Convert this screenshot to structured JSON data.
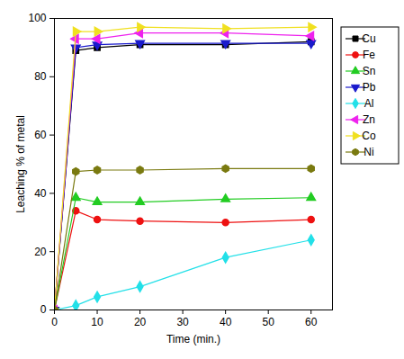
{
  "chart_data": {
    "type": "line",
    "x_label": "Time (min.)",
    "y_label": "Leaching % of metal",
    "x": [
      0,
      5,
      10,
      20,
      40,
      60
    ],
    "xlim": [
      0,
      65
    ],
    "xticks": [
      0,
      10,
      20,
      30,
      40,
      50,
      60
    ],
    "ylim": [
      0,
      100
    ],
    "yticks": [
      0,
      20,
      40,
      60,
      80,
      100
    ],
    "legend": "right",
    "series": [
      {
        "name": "Cu",
        "color": "#000000",
        "marker": "square",
        "values": [
          0,
          89,
          90,
          91,
          91,
          92
        ]
      },
      {
        "name": "Fe",
        "color": "#ee1111",
        "marker": "circle",
        "values": [
          0,
          34,
          31,
          30.5,
          30,
          31
        ]
      },
      {
        "name": "Sn",
        "color": "#22cc22",
        "marker": "triangle-up",
        "values": [
          0,
          38.5,
          37,
          37,
          38,
          38.5
        ]
      },
      {
        "name": "Pb",
        "color": "#1a1acc",
        "marker": "triangle-down",
        "values": [
          0,
          90,
          91,
          91.5,
          91.5,
          91.5
        ]
      },
      {
        "name": "Al",
        "color": "#22e0e8",
        "marker": "diamond",
        "values": [
          0,
          1.5,
          4.5,
          8,
          18,
          24
        ]
      },
      {
        "name": "Zn",
        "color": "#ee22ee",
        "marker": "triangle-left",
        "values": [
          0,
          93,
          93,
          95,
          95,
          94
        ]
      },
      {
        "name": "Co",
        "color": "#f0e020",
        "marker": "triangle-right",
        "values": [
          0,
          95.5,
          95.5,
          97,
          96.5,
          97
        ]
      },
      {
        "name": "Ni",
        "color": "#7a7a10",
        "marker": "hexagon",
        "values": [
          0,
          47.5,
          48,
          48,
          48.5,
          48.5
        ]
      }
    ]
  }
}
